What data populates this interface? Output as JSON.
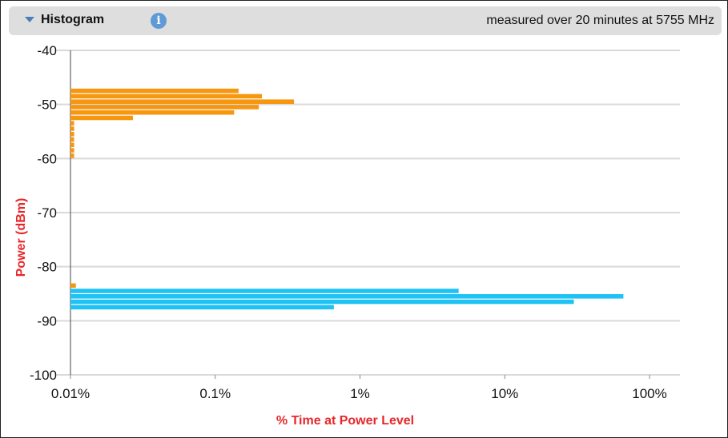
{
  "header": {
    "title": "Histogram",
    "info_icon": "info-icon",
    "measurement": "measured over 20 minutes at 5755 MHz"
  },
  "colors": {
    "orange": "#f7960f",
    "blue": "#1fc2f5",
    "axis_label": "#e8262a",
    "grid": "#d9d9d9"
  },
  "chart_data": {
    "type": "bar",
    "orientation": "horizontal",
    "xscale": "log",
    "xlabel": "% Time at Power Level",
    "ylabel": "Power (dBm)",
    "xlim": [
      0.01,
      100
    ],
    "ylim": [
      -100,
      -40
    ],
    "xticks": [
      {
        "value": 0.01,
        "label": "0.01%"
      },
      {
        "value": 0.1,
        "label": "0.1%"
      },
      {
        "value": 1,
        "label": "1%"
      },
      {
        "value": 10,
        "label": "10%"
      },
      {
        "value": 100,
        "label": "100%"
      }
    ],
    "yticks": [
      {
        "value": -40,
        "label": "-40"
      },
      {
        "value": -50,
        "label": "-50"
      },
      {
        "value": -60,
        "label": "-60"
      },
      {
        "value": -70,
        "label": "-70"
      },
      {
        "value": -80,
        "label": "-80"
      },
      {
        "value": -90,
        "label": "-90"
      },
      {
        "value": -100,
        "label": "-100"
      }
    ],
    "grid": true,
    "series": [
      {
        "color": "#f7960f",
        "points": [
          {
            "dbm": -47,
            "pct": 0.145
          },
          {
            "dbm": -48,
            "pct": 0.21
          },
          {
            "dbm": -49,
            "pct": 0.35
          },
          {
            "dbm": -50,
            "pct": 0.2
          },
          {
            "dbm": -51,
            "pct": 0.135
          },
          {
            "dbm": -52,
            "pct": 0.027
          },
          {
            "dbm": -53,
            "pct": 0.0106
          },
          {
            "dbm": -54,
            "pct": 0.0106
          },
          {
            "dbm": -55,
            "pct": 0.0106
          },
          {
            "dbm": -56,
            "pct": 0.0106
          },
          {
            "dbm": -57,
            "pct": 0.0106
          },
          {
            "dbm": -58,
            "pct": 0.0106
          },
          {
            "dbm": -59,
            "pct": 0.0106
          },
          {
            "dbm": -83,
            "pct": 0.0109
          }
        ]
      },
      {
        "color": "#1fc2f5",
        "points": [
          {
            "dbm": -84,
            "pct": 4.8
          },
          {
            "dbm": -85,
            "pct": 66
          },
          {
            "dbm": -86,
            "pct": 30
          },
          {
            "dbm": -87,
            "pct": 0.66
          }
        ]
      }
    ]
  }
}
